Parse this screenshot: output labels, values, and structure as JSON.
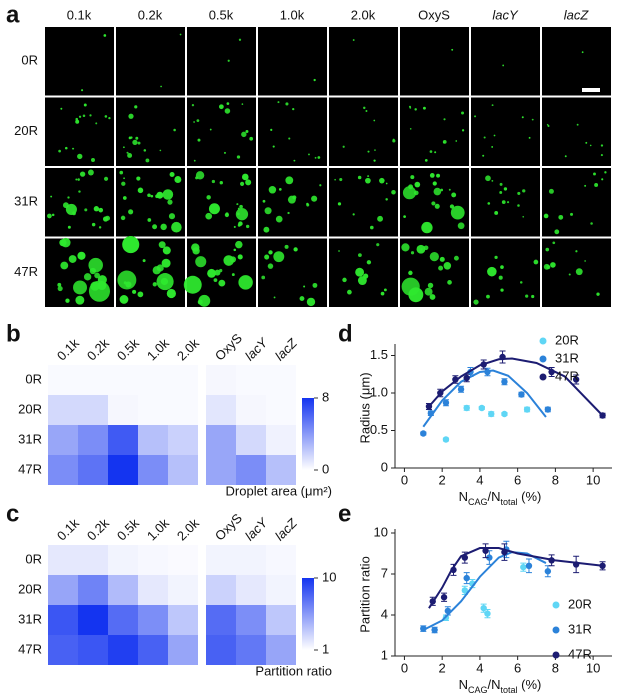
{
  "image_panel": {
    "label": "a",
    "columns": [
      "0.1k",
      "0.2k",
      "0.5k",
      "1.0k",
      "2.0k",
      "OxyS",
      "lacY",
      "lacZ"
    ],
    "rows": [
      "0R",
      "20R",
      "31R",
      "47R"
    ]
  },
  "chart_data": [
    {
      "panel_label": "b",
      "type": "heatmap",
      "categories": [
        "0.1k",
        "0.2k",
        "0.5k",
        "1.0k",
        "2.0k",
        "OxyS",
        "lacY",
        "lacZ"
      ],
      "rows": [
        "0R",
        "20R",
        "31R",
        "47R"
      ],
      "values": [
        [
          0.2,
          0.2,
          0.2,
          0.2,
          0.2,
          0.3,
          0.2,
          0.2
        ],
        [
          1.5,
          1.5,
          0.3,
          0.2,
          0.2,
          1.0,
          0.3,
          0.2
        ],
        [
          3.5,
          4.5,
          6.5,
          2.5,
          1.8,
          3.5,
          1.5,
          0.5
        ],
        [
          4.5,
          5.5,
          8,
          4.5,
          2.5,
          3.5,
          4.5,
          2.5
        ]
      ],
      "colorbar_label": "Droplet area (μm²)",
      "clim": [
        0,
        8
      ],
      "cticks": [
        0,
        8
      ],
      "colors": [
        "#ffffff",
        "#1434f0"
      ]
    },
    {
      "panel_label": "c",
      "type": "heatmap",
      "categories": [
        "0.1k",
        "0.2k",
        "0.5k",
        "1.0k",
        "2.0k",
        "OxyS",
        "lacY",
        "lacZ"
      ],
      "rows": [
        "0R",
        "20R",
        "31R",
        "47R"
      ],
      "values": [
        [
          2,
          2,
          1.5,
          1.3,
          1.2,
          1.5,
          1.5,
          1.3
        ],
        [
          5,
          6.5,
          4,
          2,
          1.5,
          3,
          2,
          1.5
        ],
        [
          8.5,
          10,
          7.5,
          6,
          3.5,
          7.5,
          6,
          3.5
        ],
        [
          8,
          8.5,
          9.5,
          8,
          5,
          8,
          7,
          5
        ]
      ],
      "colorbar_label": "Partition ratio",
      "clim": [
        1,
        10
      ],
      "cticks": [
        1,
        10
      ],
      "colors": [
        "#ffffff",
        "#1434f0"
      ]
    },
    {
      "panel_label": "d",
      "type": "scatter",
      "x_label": [
        "N",
        "CAG",
        "/N",
        "total",
        " (%)"
      ],
      "y_label": "Radius (μm)",
      "xlim": [
        -0.5,
        11
      ],
      "xticks": [
        0,
        2,
        4,
        6,
        8,
        10
      ],
      "ylim": [
        0,
        1.6
      ],
      "yticks": [
        0,
        0.5,
        {
          "value": 1.0,
          "label": "1.0"
        },
        1.5
      ],
      "series": [
        {
          "name": "20R",
          "color": "#5fd6f5",
          "x": [
            2.2,
            3.3,
            4.1,
            4.6,
            5.3,
            6.5
          ],
          "values": [
            0.38,
            0.8,
            0.8,
            0.72,
            0.72,
            0.78
          ],
          "errors": [
            0.02,
            0.03,
            0.02,
            0.03,
            0.02,
            0.03
          ]
        },
        {
          "name": "31R",
          "color": "#2b82d9",
          "x": [
            1,
            1.4,
            2.2,
            3.0,
            3.5,
            4.4,
            5.3,
            6.2,
            7.6
          ],
          "values": [
            0.46,
            0.73,
            0.87,
            1.05,
            1.28,
            1.28,
            1.15,
            0.98,
            0.78
          ],
          "errors": [
            0.02,
            0.03,
            0.04,
            0.04,
            0.06,
            0.05,
            0.04,
            0.03,
            0.03
          ],
          "fit": {
            "x": [
              1,
              2,
              3,
              4,
              4.7,
              5.5,
              6.5,
              7.5
            ],
            "values": [
              0.55,
              0.9,
              1.15,
              1.28,
              1.3,
              1.23,
              1.0,
              0.68
            ]
          }
        },
        {
          "name": "47R",
          "color": "#1c1c72",
          "x": [
            1.3,
            1.9,
            2.7,
            3.3,
            4.2,
            5.2,
            7.8,
            9.1,
            10.5
          ],
          "values": [
            0.82,
            1.0,
            1.18,
            1.2,
            1.38,
            1.48,
            1.28,
            1.18,
            0.7
          ],
          "errors": [
            0.04,
            0.05,
            0.05,
            0.05,
            0.06,
            0.08,
            0.06,
            0.06,
            0.03
          ],
          "fit": {
            "x": [
              1.3,
              2,
              3,
              4,
              5,
              5.7,
              7,
              8.5,
              10.5
            ],
            "values": [
              0.82,
              1.02,
              1.22,
              1.37,
              1.45,
              1.46,
              1.4,
              1.22,
              0.7
            ]
          }
        }
      ]
    },
    {
      "panel_label": "e",
      "type": "scatter",
      "x_label": [
        "N",
        "CAG",
        "/N",
        "total",
        " (%)"
      ],
      "y_label": "Partition ratio",
      "xlim": [
        -0.5,
        11
      ],
      "xticks": [
        0,
        2,
        4,
        6,
        8,
        10
      ],
      "ylim": [
        1,
        10
      ],
      "yticks": [
        1,
        4,
        7,
        10
      ],
      "series": [
        {
          "name": "20R",
          "color": "#5fd6f5",
          "x": [
            2.2,
            3.2,
            3.6,
            4.2,
            4.4,
            6.3
          ],
          "values": [
            3.8,
            5.8,
            6.3,
            4.5,
            4.1,
            7.5
          ],
          "errors": [
            0.2,
            0.3,
            0.3,
            0.3,
            0.3,
            0.3
          ]
        },
        {
          "name": "31R",
          "color": "#2b82d9",
          "x": [
            1,
            1.6,
            2.3,
            3.3,
            4.5,
            5.4,
            6.6,
            7.6
          ],
          "values": [
            3.0,
            2.9,
            4.3,
            6.7,
            8.2,
            8.8,
            7.6,
            7.2
          ],
          "errors": [
            0.2,
            0.2,
            0.3,
            0.4,
            0.5,
            0.6,
            0.5,
            0.4
          ],
          "fit": {
            "x": [
              1,
              2,
              3,
              4,
              5,
              5.7,
              6.5,
              7.5
            ],
            "values": [
              2.9,
              3.6,
              5.0,
              6.8,
              8.2,
              8.6,
              8.5,
              7.8
            ]
          }
        },
        {
          "name": "47R",
          "color": "#1c1c72",
          "x": [
            1.5,
            2.1,
            2.6,
            3.2,
            4.3,
            5.3,
            7.8,
            9.1,
            10.5
          ],
          "values": [
            5.0,
            5.3,
            7.3,
            8.2,
            8.7,
            8.6,
            8.0,
            7.7,
            7.6
          ],
          "errors": [
            0.3,
            0.3,
            0.4,
            0.4,
            0.5,
            0.6,
            0.4,
            0.6,
            0.3
          ],
          "fit": {
            "x": [
              1.3,
              2,
              2.5,
              3,
              4,
              5,
              6,
              8,
              10.5
            ],
            "values": [
              4.5,
              6.0,
              7.3,
              8.3,
              8.9,
              8.9,
              8.5,
              8.0,
              7.6
            ]
          }
        }
      ]
    }
  ]
}
